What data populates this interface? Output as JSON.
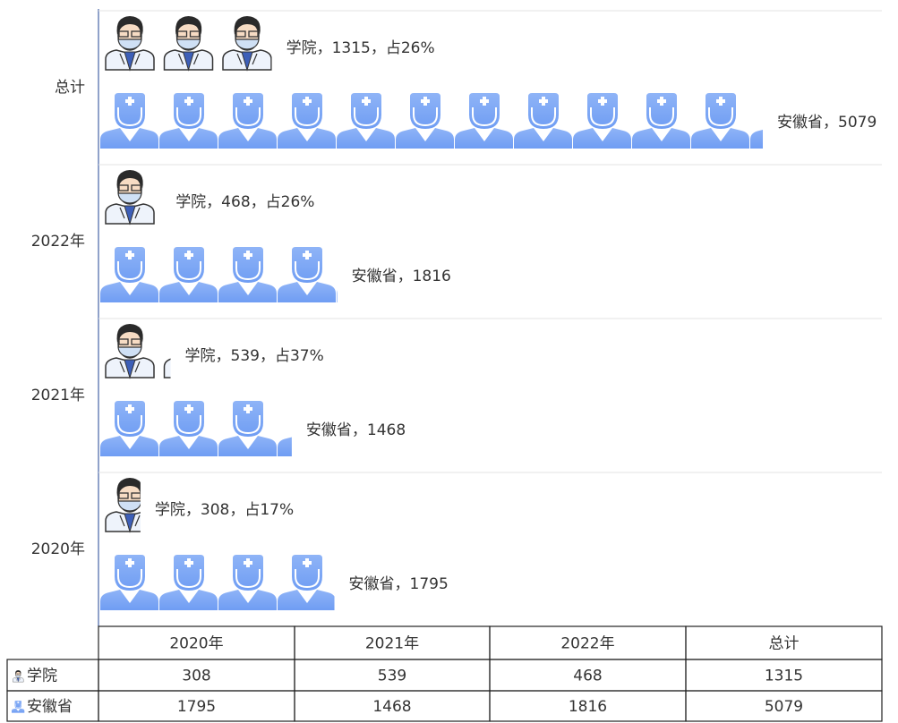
{
  "chart_data": {
    "type": "bar",
    "categories": [
      "2020年",
      "2021年",
      "2022年",
      "总计"
    ],
    "series": [
      {
        "name": "学院",
        "color": "#3d5fb8",
        "values": [
          308,
          539,
          468,
          1315
        ],
        "value_labels": [
          "学院，308，占17%",
          "学院，539，占37%",
          "学院，468，占26%",
          "学院，1315，占26%"
        ]
      },
      {
        "name": "安徽省",
        "color": "#6f9df3",
        "values": [
          1795,
          1468,
          1816,
          5079
        ],
        "value_labels": [
          "安徽省，1795",
          "安徽省，1468",
          "安徽省，1816",
          "安徽省，5079"
        ]
      }
    ]
  }
}
